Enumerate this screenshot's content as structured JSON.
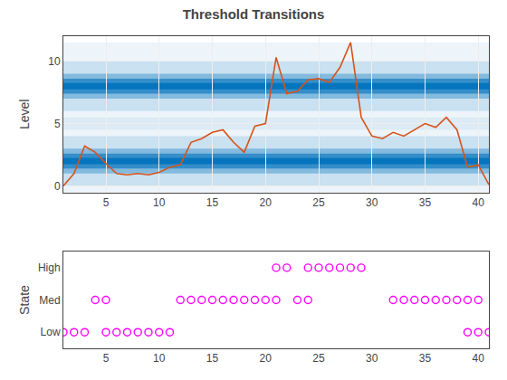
{
  "chart_data": [
    {
      "type": "line",
      "title": "Threshold Transitions",
      "y_label": "Level",
      "x": [
        1,
        2,
        3,
        4,
        5,
        6,
        7,
        8,
        9,
        10,
        11,
        12,
        13,
        14,
        15,
        16,
        17,
        18,
        19,
        20,
        21,
        22,
        23,
        24,
        25,
        26,
        27,
        28,
        29,
        30,
        31,
        32,
        33,
        34,
        35,
        36,
        37,
        38,
        39,
        40,
        41
      ],
      "values": [
        0.0,
        1.0,
        3.2,
        2.7,
        1.8,
        1.0,
        0.9,
        1.0,
        0.9,
        1.1,
        1.5,
        1.7,
        3.5,
        3.8,
        4.3,
        4.5,
        3.5,
        2.7,
        4.8,
        5.0,
        10.3,
        7.4,
        7.6,
        8.5,
        8.6,
        8.3,
        9.5,
        11.5,
        5.5,
        4.0,
        3.8,
        4.3,
        4.0,
        4.5,
        5.0,
        4.7,
        5.5,
        4.5,
        1.5,
        1.7,
        0.1
      ],
      "color": "#d95319",
      "xlim": [
        1,
        41
      ],
      "xticks": [
        5,
        10,
        15,
        20,
        25,
        30,
        35,
        40
      ],
      "ylim": [
        -0.5,
        12
      ],
      "yticks": [
        0,
        5,
        10
      ],
      "grid": true,
      "bands": {
        "centers": [
          2.0,
          8.0
        ],
        "color": "#0072bd"
      }
    },
    {
      "type": "scatter",
      "y_label": "State",
      "series": [
        {
          "x": [
            1,
            2,
            3,
            5,
            6,
            7,
            8,
            9,
            10,
            11,
            39,
            40,
            41
          ],
          "values": [
            0,
            0,
            0,
            0,
            0,
            0,
            0,
            0,
            0,
            0,
            0,
            0,
            0
          ]
        },
        {
          "x": [
            4,
            5,
            12,
            13,
            14,
            15,
            16,
            17,
            18,
            19,
            20,
            21,
            23,
            24,
            32,
            33,
            34,
            35,
            36,
            37,
            38,
            39,
            40
          ],
          "values": [
            1,
            1,
            1,
            1,
            1,
            1,
            1,
            1,
            1,
            1,
            1,
            1,
            1,
            1,
            1,
            1,
            1,
            1,
            1,
            1,
            1,
            1,
            1
          ]
        },
        {
          "x": [
            21,
            22,
            24,
            25,
            26,
            27,
            28,
            29
          ],
          "values": [
            2,
            2,
            2,
            2,
            2,
            2,
            2,
            2
          ]
        }
      ],
      "color": "#ff00ff",
      "marker": "circle-open",
      "xlim": [
        1,
        41
      ],
      "xticks": [
        5,
        10,
        15,
        20,
        25,
        30,
        35,
        40
      ],
      "ylim": [
        -0.5,
        2.5
      ],
      "yticks": [
        {
          "value": 0,
          "label": "Low"
        },
        {
          "value": 1,
          "label": "Med"
        },
        {
          "value": 2,
          "label": "High"
        }
      ],
      "grid": false
    }
  ]
}
